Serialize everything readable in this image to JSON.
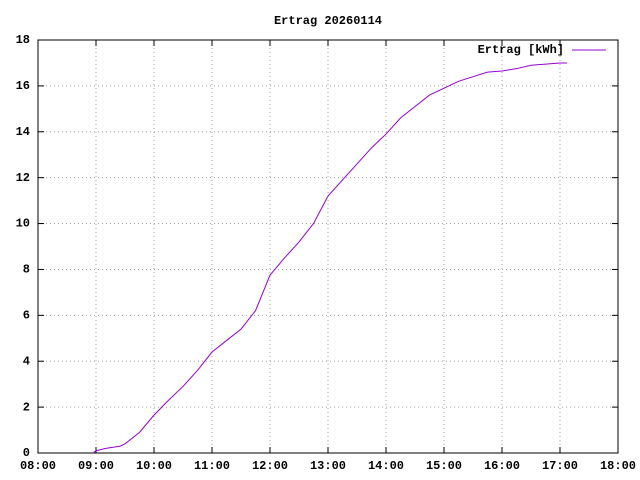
{
  "chart_data": {
    "type": "line",
    "title": "Ertrag 20260114",
    "x": [
      8.95,
      9,
      9.17,
      9.42,
      9.5,
      9.75,
      10,
      10.25,
      10.5,
      10.75,
      11,
      11.25,
      11.5,
      11.75,
      12,
      12.25,
      12.5,
      12.75,
      13,
      13.25,
      13.5,
      13.75,
      14,
      14.25,
      14.5,
      14.75,
      15,
      15.25,
      15.5,
      15.75,
      16,
      16.25,
      16.5,
      16.75,
      17,
      17.12
    ],
    "series": [
      {
        "name": "Ertrag [kWh]",
        "color": "#9400d3",
        "values": [
          0,
          0.1,
          0.2,
          0.3,
          0.4,
          0.9,
          1.65,
          2.3,
          2.9,
          3.6,
          4.4,
          4.9,
          5.4,
          6.2,
          7.75,
          8.5,
          9.2,
          10.0,
          11.2,
          11.9,
          12.6,
          13.3,
          13.9,
          14.6,
          15.1,
          15.6,
          15.9,
          16.2,
          16.4,
          16.6,
          16.65,
          16.75,
          16.9,
          16.95,
          17.0,
          17.0
        ]
      }
    ],
    "xlim": [
      8,
      18
    ],
    "xticks": [
      {
        "value": 8,
        "label": "08:00"
      },
      {
        "value": 9,
        "label": "09:00"
      },
      {
        "value": 10,
        "label": "10:00"
      },
      {
        "value": 11,
        "label": "11:00"
      },
      {
        "value": 12,
        "label": "12:00"
      },
      {
        "value": 13,
        "label": "13:00"
      },
      {
        "value": 14,
        "label": "14:00"
      },
      {
        "value": 15,
        "label": "15:00"
      },
      {
        "value": 16,
        "label": "16:00"
      },
      {
        "value": 17,
        "label": "17:00"
      },
      {
        "value": 18,
        "label": "18:00"
      }
    ],
    "ylim": [
      0,
      18
    ],
    "yticks": [
      0,
      2,
      4,
      6,
      8,
      10,
      12,
      14,
      16,
      18
    ],
    "grid": true,
    "legend": "top-right"
  }
}
